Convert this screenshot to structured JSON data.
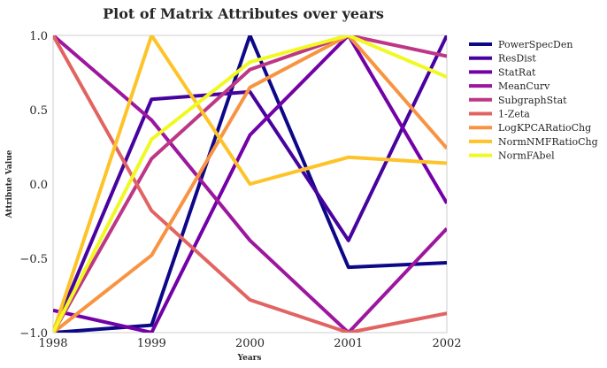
{
  "chart_data": {
    "type": "line",
    "title": "Plot of Matrix Attributes over years",
    "xlabel": "Years",
    "ylabel": "Attribute Value",
    "x": [
      1998,
      1999,
      2000,
      2001,
      2002
    ],
    "xlim": [
      1998,
      2002
    ],
    "ylim": [
      -1.0,
      1.0
    ],
    "x_ticks": [
      "1998",
      "1999",
      "2000",
      "2001",
      "2002"
    ],
    "y_ticks": [
      "1.0",
      "0.5",
      "0.0",
      "−0.5",
      "−1.0"
    ],
    "y_tick_values": [
      1.0,
      0.5,
      0.0,
      -0.5,
      -1.0
    ],
    "grid": false,
    "legend_position": "outside-right",
    "series": [
      {
        "name": "PowerSpecDen",
        "color": "#0d0887",
        "values": [
          -1.0,
          -0.95,
          1.0,
          -0.56,
          -0.53
        ]
      },
      {
        "name": "ResDist",
        "color": "#47039f",
        "values": [
          -1.0,
          0.57,
          0.62,
          -0.38,
          1.0
        ]
      },
      {
        "name": "StatRat",
        "color": "#7301a8",
        "values": [
          -0.85,
          -1.0,
          0.33,
          1.0,
          -0.13
        ]
      },
      {
        "name": "MeanCurv",
        "color": "#9c179e",
        "values": [
          1.0,
          0.43,
          -0.38,
          -1.0,
          -0.3
        ]
      },
      {
        "name": "SubgraphStat",
        "color": "#bd3786",
        "values": [
          -1.0,
          0.17,
          0.77,
          1.0,
          0.86
        ]
      },
      {
        "name": "1-Zeta",
        "color": "#e16462",
        "values": [
          1.0,
          -0.18,
          -0.78,
          -1.0,
          -0.87
        ]
      },
      {
        "name": "LogKPCARatioChg",
        "color": "#f89441",
        "values": [
          -1.0,
          -0.48,
          0.65,
          1.0,
          0.24
        ]
      },
      {
        "name": "NormNMFRatioChg",
        "color": "#fdc328",
        "values": [
          -1.0,
          1.0,
          0.0,
          0.18,
          0.14
        ]
      },
      {
        "name": "NormFAbel",
        "color": "#f0f921",
        "values": [
          -1.0,
          0.3,
          0.82,
          1.0,
          0.72
        ]
      }
    ]
  }
}
